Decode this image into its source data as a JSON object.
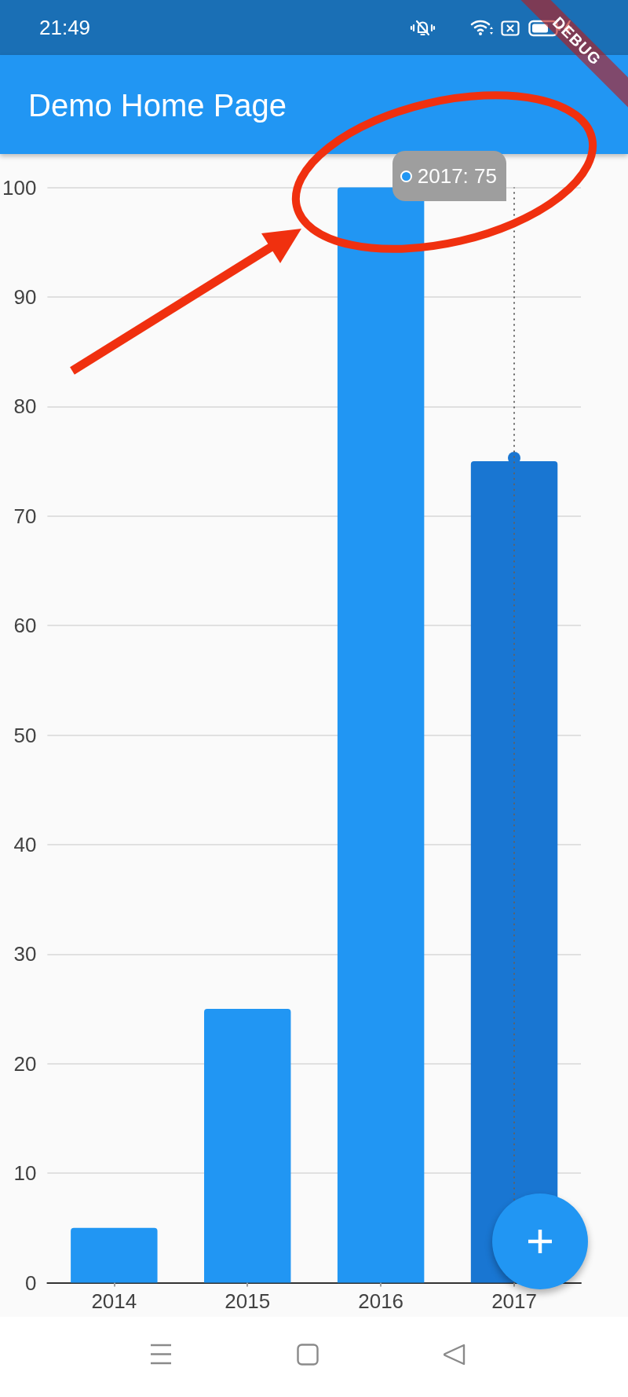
{
  "chart_data": {
    "type": "bar",
    "title": "Demo Home Page",
    "categories": [
      "2014",
      "2015",
      "2016",
      "2017"
    ],
    "values": [
      5,
      25,
      100,
      75
    ],
    "colors": [
      "#2196f3",
      "#2196f3",
      "#2196f3",
      "#1976d2"
    ],
    "ylim": [
      0,
      100
    ],
    "yticks": [
      0,
      10,
      20,
      30,
      40,
      50,
      60,
      70,
      80,
      90,
      100
    ],
    "grid": "y",
    "ref_lines": [
      {
        "axis": "x",
        "value": "2017",
        "color": "#616161",
        "line_style": "dotted"
      }
    ],
    "annotations": [
      "21:49",
      "DEBUG",
      "2017: 75"
    ]
  }
}
